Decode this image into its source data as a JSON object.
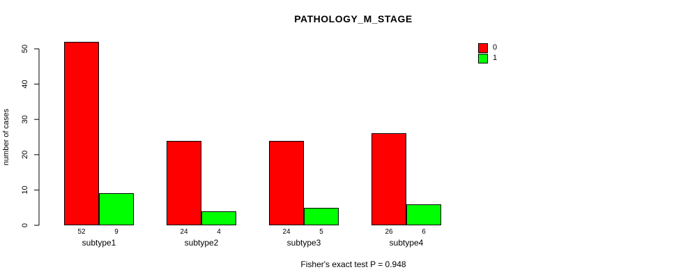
{
  "chart_data": {
    "type": "bar",
    "title": "PATHOLOGY_M_STAGE",
    "xlabel": "",
    "ylabel": "number of cases",
    "categories": [
      "subtype1",
      "subtype2",
      "subtype3",
      "subtype4"
    ],
    "series": [
      {
        "name": "0",
        "color": "#FF0000",
        "values": [
          52,
          24,
          24,
          26
        ]
      },
      {
        "name": "1",
        "color": "#00FF00",
        "values": [
          9,
          4,
          5,
          6
        ]
      }
    ],
    "bar_value_labels": true,
    "ylim": [
      0,
      50
    ],
    "yticks": [
      0,
      10,
      20,
      30,
      40,
      50
    ],
    "grid": false,
    "legend_position": "top-right",
    "annotation": "Fisher's exact test P = 0.948"
  },
  "colors": {
    "background": "#FFFFFF",
    "axis": "#000000",
    "text": "#000000"
  }
}
